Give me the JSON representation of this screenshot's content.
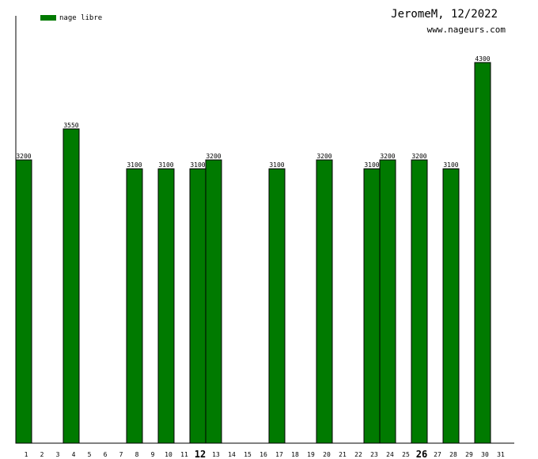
{
  "header": {
    "title": "JeromeM, 12/2022",
    "site": "www.nageurs.com"
  },
  "colors": {
    "bar": "#007a00",
    "bar_border": "#000000"
  },
  "chart_data": {
    "type": "bar",
    "title": "",
    "xlabel": "",
    "ylabel": "",
    "legend": {
      "position": "top-left",
      "entries": [
        "nage libre"
      ]
    },
    "categories": [
      1,
      2,
      3,
      4,
      5,
      6,
      7,
      8,
      9,
      10,
      11,
      12,
      13,
      14,
      15,
      16,
      17,
      18,
      19,
      20,
      21,
      22,
      23,
      24,
      25,
      26,
      27,
      28,
      29,
      30,
      31
    ],
    "highlighted_ticks": [
      12,
      26
    ],
    "series": [
      {
        "name": "nage libre",
        "values": [
          3200,
          0,
          0,
          3550,
          0,
          0,
          0,
          3100,
          0,
          3100,
          0,
          3100,
          3200,
          0,
          0,
          0,
          3100,
          0,
          0,
          3200,
          0,
          0,
          3100,
          3200,
          0,
          3200,
          0,
          3100,
          0,
          4300,
          0
        ]
      }
    ],
    "ylim": [
      0,
      4300
    ],
    "grid": false
  }
}
